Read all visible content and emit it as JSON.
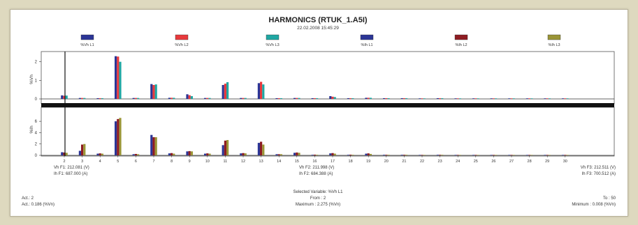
{
  "title": "HARMONICS (RTUK_1.A5I)",
  "datetime": "22.02.2008 15:45:29",
  "legend": [
    {
      "label": "%Vh L1",
      "color": "#2b3596"
    },
    {
      "label": "%Vh L2",
      "color": "#e8393c"
    },
    {
      "label": "%Vh L3",
      "color": "#1fa7a3"
    },
    {
      "label": "%Ih L1",
      "color": "#2b3596"
    },
    {
      "label": "%Ih L2",
      "color": "#8e1c22"
    },
    {
      "label": "%Ih L3",
      "color": "#9a9536"
    }
  ],
  "info": {
    "vh_f1": "Vh F1: 212.081 (V)",
    "ih_f1": "Ih F1: 687.000 (A)",
    "vh_f2": "Vh F2: 211.998 (V)",
    "ih_f2": "Ih F2: 684.388 (A)",
    "vh_f3": "Vh F3: 212.511 (V)",
    "ih_f3": "Ih F3: 700.512 (A)",
    "selected_variable": "Selected Variable: %Vh L1",
    "from": "From : 2",
    "to": "To : 50",
    "act": "Act.: 2",
    "act_value": "Act.: 0.186 (%Vn)",
    "maximum": "Maximum : 2.275 (%Vn)",
    "minimum": "Minimum : 0.008 (%Vn)"
  },
  "chart_data": [
    {
      "type": "bar",
      "ylabel": "%Vh",
      "ylim": [
        0,
        2.4
      ],
      "yticks": [
        0,
        1,
        2
      ],
      "categories": [
        "2",
        "3",
        "4",
        "5",
        "6",
        "7",
        "8",
        "9",
        "10",
        "11",
        "12",
        "13",
        "14",
        "15",
        "16",
        "17",
        "18",
        "19",
        "20",
        "21",
        "22",
        "23",
        "24",
        "25",
        "26",
        "27",
        "28",
        "29",
        "30"
      ],
      "series": [
        {
          "name": "%Vh L1",
          "color": "#2b3596",
          "values": [
            0.19,
            0.05,
            0.04,
            2.3,
            0.05,
            0.8,
            0.06,
            0.25,
            0.05,
            0.75,
            0.05,
            0.85,
            0.04,
            0.05,
            0.04,
            0.15,
            0.04,
            0.06,
            0.04,
            0.04,
            0.03,
            0.04,
            0.03,
            0.03,
            0.03,
            0.03,
            0.03,
            0.03,
            0.03
          ]
        },
        {
          "name": "%Vh L2",
          "color": "#e8393c",
          "values": [
            0.17,
            0.05,
            0.04,
            2.28,
            0.05,
            0.75,
            0.06,
            0.2,
            0.05,
            0.82,
            0.05,
            0.92,
            0.04,
            0.05,
            0.04,
            0.12,
            0.04,
            0.06,
            0.04,
            0.04,
            0.03,
            0.04,
            0.03,
            0.03,
            0.03,
            0.03,
            0.03,
            0.03,
            0.03
          ]
        },
        {
          "name": "%Vh L3",
          "color": "#1fa7a3",
          "values": [
            0.18,
            0.05,
            0.04,
            2.0,
            0.05,
            0.78,
            0.06,
            0.15,
            0.05,
            0.9,
            0.05,
            0.78,
            0.04,
            0.05,
            0.04,
            0.1,
            0.04,
            0.06,
            0.04,
            0.04,
            0.03,
            0.04,
            0.03,
            0.03,
            0.03,
            0.03,
            0.03,
            0.03,
            0.03
          ]
        }
      ]
    },
    {
      "type": "bar",
      "ylabel": "%Ih",
      "ylim": [
        0,
        7
      ],
      "yticks": [
        0,
        2,
        4,
        6
      ],
      "categories": [
        "2",
        "3",
        "4",
        "5",
        "6",
        "7",
        "8",
        "9",
        "10",
        "11",
        "12",
        "13",
        "14",
        "15",
        "16",
        "17",
        "18",
        "19",
        "20",
        "21",
        "22",
        "23",
        "24",
        "25",
        "26",
        "27",
        "28",
        "29",
        "30"
      ],
      "series": [
        {
          "name": "%Ih L1",
          "color": "#2b3596",
          "values": [
            0.55,
            0.8,
            0.3,
            6.0,
            0.2,
            3.6,
            0.35,
            0.7,
            0.3,
            1.8,
            0.35,
            2.2,
            0.2,
            0.45,
            0.1,
            0.35,
            0.1,
            0.3,
            0.1,
            0.1,
            0.08,
            0.1,
            0.08,
            0.08,
            0.08,
            0.08,
            0.08,
            0.08,
            0.08
          ]
        },
        {
          "name": "%Ih L2",
          "color": "#8e1c22",
          "values": [
            0.5,
            1.9,
            0.35,
            6.4,
            0.25,
            3.2,
            0.4,
            0.75,
            0.35,
            2.6,
            0.4,
            2.4,
            0.2,
            0.5,
            0.12,
            0.4,
            0.12,
            0.35,
            0.1,
            0.1,
            0.08,
            0.1,
            0.08,
            0.08,
            0.08,
            0.08,
            0.08,
            0.08,
            0.08
          ]
        },
        {
          "name": "%Ih L3",
          "color": "#9a9536",
          "values": [
            0.45,
            2.0,
            0.3,
            6.6,
            0.2,
            3.2,
            0.3,
            0.7,
            0.3,
            2.7,
            0.35,
            1.9,
            0.2,
            0.45,
            0.1,
            0.3,
            0.1,
            0.25,
            0.1,
            0.1,
            0.08,
            0.1,
            0.08,
            0.08,
            0.08,
            0.08,
            0.08,
            0.08,
            0.08
          ]
        }
      ]
    }
  ]
}
